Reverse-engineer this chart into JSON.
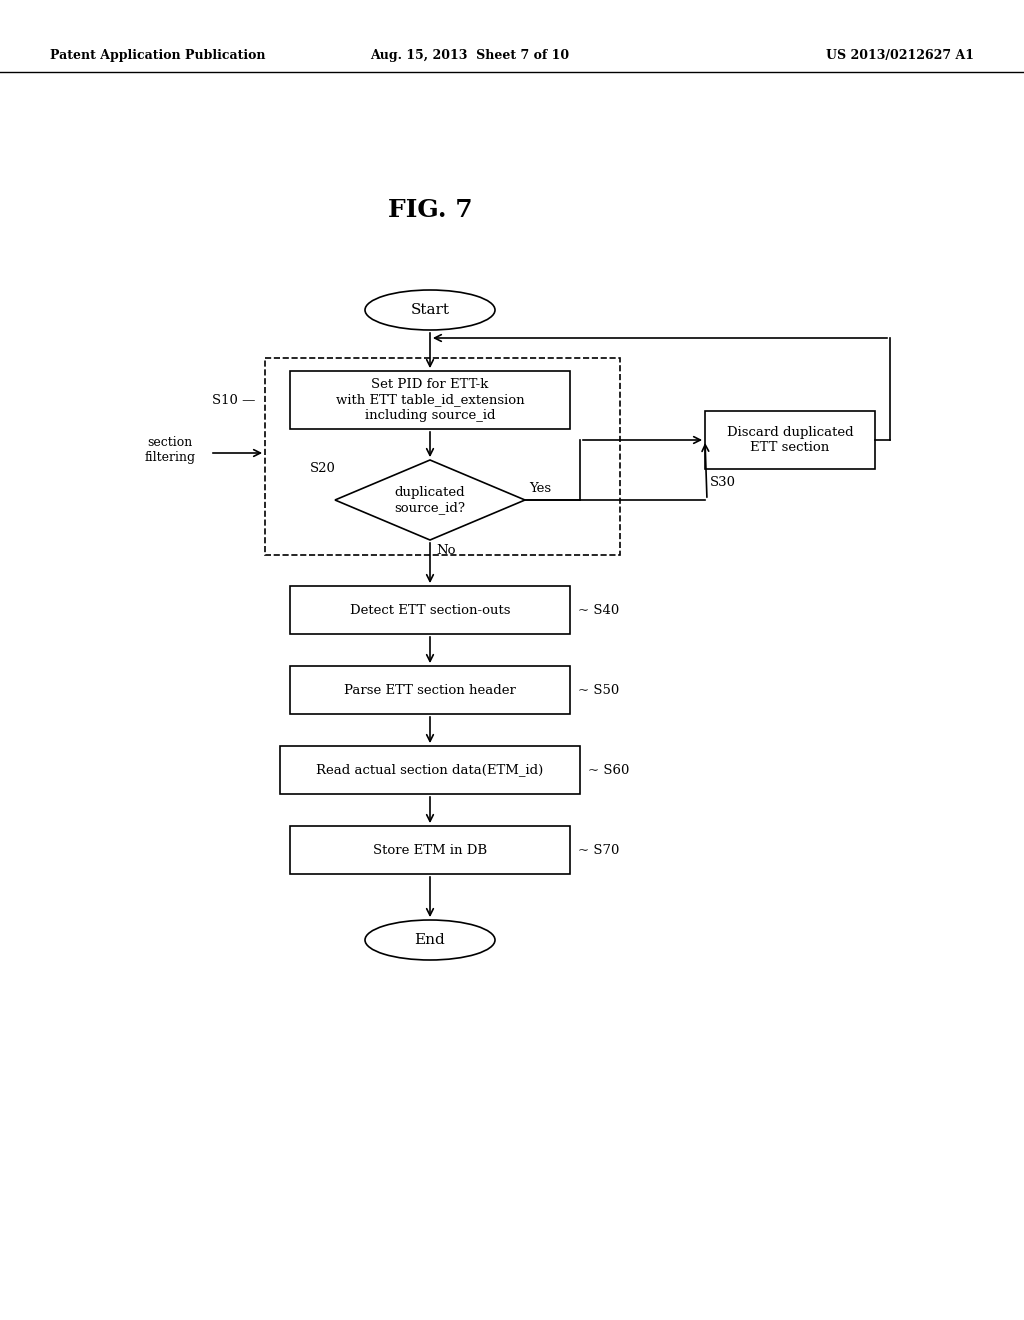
{
  "bg_color": "#ffffff",
  "header_left": "Patent Application Publication",
  "header_mid": "Aug. 15, 2013  Sheet 7 of 10",
  "header_right": "US 2013/0212627 A1",
  "fig_label": "FIG. 7"
}
